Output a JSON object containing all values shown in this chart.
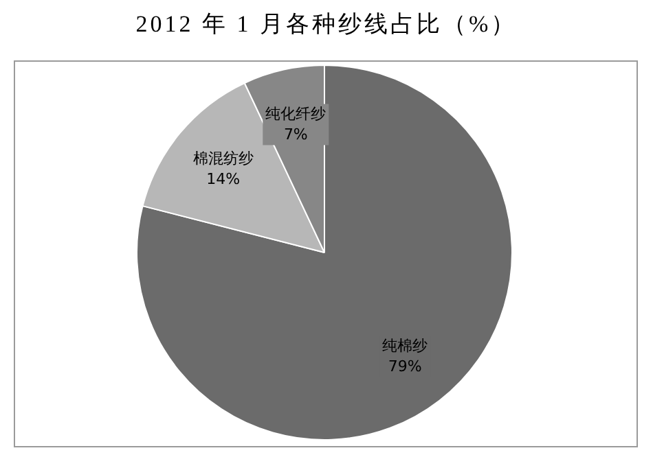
{
  "chart_data": {
    "type": "pie",
    "title": "2012 年 1 月各种纱线占比（%）",
    "categories": [
      "纯棉纱",
      "棉混纺纱",
      "纯化纤纱"
    ],
    "values": [
      79,
      14,
      7
    ],
    "colors": [
      "#6b6b6b",
      "#b7b7b7",
      "#878787"
    ],
    "value_labels": [
      "79%",
      "14%",
      "7%"
    ]
  }
}
